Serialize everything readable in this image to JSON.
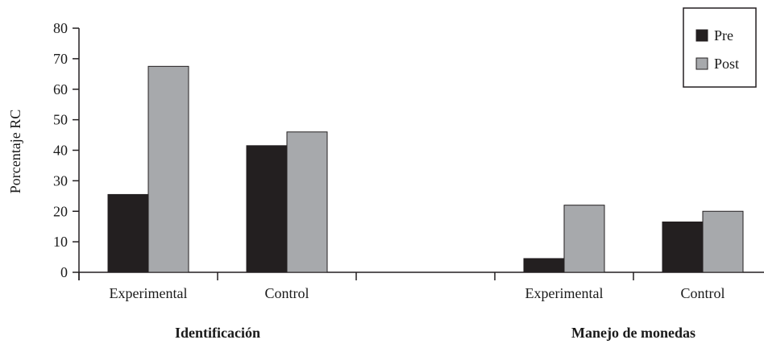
{
  "chart_data": {
    "type": "bar",
    "ylabel": "Porcentaje RC",
    "xlabel": "",
    "title": "",
    "ylim": [
      0,
      80
    ],
    "yticks": [
      0,
      10,
      20,
      30,
      40,
      50,
      60,
      70,
      80
    ],
    "grid": false,
    "legend_position": "top-right",
    "groups": [
      {
        "label": "Identificación",
        "categories": [
          {
            "label": "Experimental",
            "values": [
              25.5,
              67.5
            ]
          },
          {
            "label": "Control",
            "values": [
              41.5,
              46
            ]
          }
        ]
      },
      {
        "label": "Manejo de monedas",
        "categories": [
          {
            "label": "Experimental",
            "values": [
              4.5,
              22
            ]
          },
          {
            "label": "Control",
            "values": [
              16.5,
              20
            ]
          }
        ]
      }
    ],
    "series": [
      {
        "name": "Pre",
        "color": "#231f20"
      },
      {
        "name": "Post",
        "color": "#a7a9ac"
      }
    ]
  }
}
